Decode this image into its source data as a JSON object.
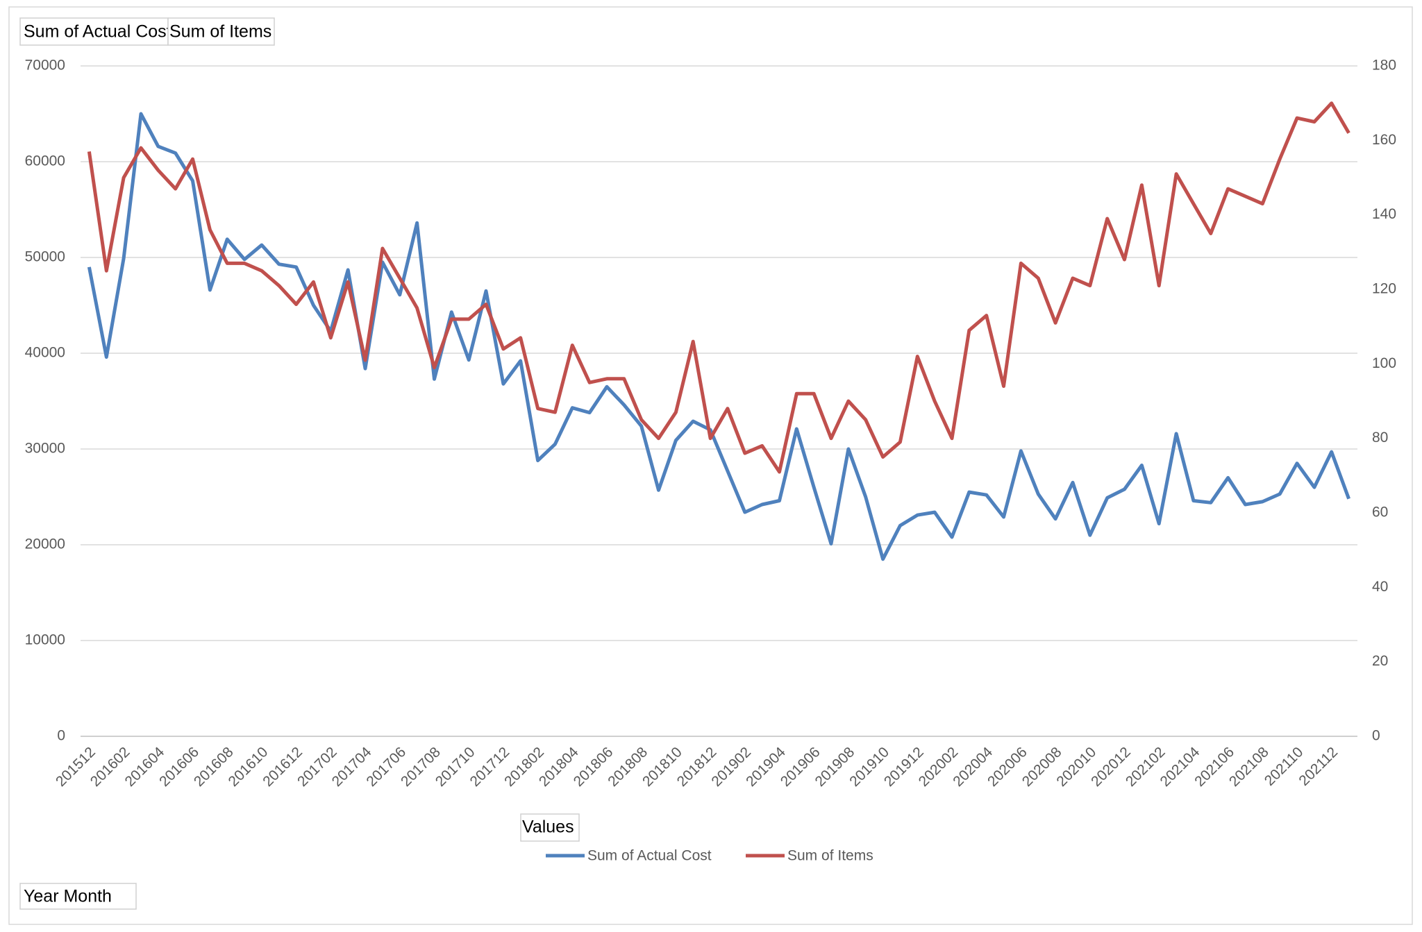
{
  "chart_data": {
    "type": "line",
    "categories": [
      "201512",
      null,
      "201602",
      null,
      "201604",
      null,
      "201606",
      null,
      "201608",
      null,
      "201610",
      null,
      "201612",
      null,
      "201702",
      null,
      "201704",
      null,
      "201706",
      null,
      "201708",
      null,
      "201710",
      null,
      "201712",
      null,
      "201802",
      null,
      "201804",
      null,
      "201806",
      null,
      "201808",
      null,
      "201810",
      null,
      "201812",
      null,
      "201902",
      null,
      "201904",
      null,
      "201906",
      null,
      "201908",
      null,
      "201910",
      null,
      "201912",
      null,
      "202002",
      null,
      "202004",
      null,
      "202006",
      null,
      "202008",
      null,
      "202010",
      null,
      "202012",
      null,
      "202102",
      null,
      "202104",
      null,
      "202106",
      null,
      "202108",
      null,
      "202110",
      null,
      "202112",
      null
    ],
    "series": [
      {
        "name": "Sum of Actual Cost",
        "color": "#4f81bd",
        "values": [
          49000,
          39600,
          49900,
          65000,
          61600,
          60900,
          58000,
          46600,
          51900,
          49800,
          51300,
          49300,
          49000,
          45000,
          42300,
          48700,
          38400,
          49500,
          46100,
          53600,
          37300,
          44300,
          39300,
          46500,
          36800,
          39200,
          28800,
          30500,
          34300,
          33800,
          36500,
          34600,
          32400,
          25700,
          30900,
          32900,
          32000,
          27700,
          23400,
          24200,
          24600,
          32100,
          26000,
          20100,
          30000,
          25000,
          18500,
          22000,
          23100,
          23400,
          20800,
          25500,
          25200,
          22900,
          29800,
          25300,
          22700,
          26500,
          21000,
          24900,
          25800,
          28300,
          22200,
          31600,
          24600,
          24400,
          27000,
          24200,
          24500,
          25300,
          28500,
          26000,
          29700,
          24800
        ]
      },
      {
        "name": "Sum of Items",
        "color": "#c0504d",
        "axis": "y2",
        "values": [
          157,
          125,
          150,
          158,
          152,
          147,
          155,
          136,
          127,
          127,
          125,
          121,
          116,
          122,
          107,
          122,
          101,
          131,
          123,
          115,
          99,
          112,
          112,
          116,
          104,
          107,
          88,
          87,
          105,
          95,
          96,
          96,
          85,
          80,
          87,
          106,
          80,
          88,
          76,
          78,
          71,
          92,
          92,
          80,
          90,
          85,
          75,
          79,
          102,
          90,
          80,
          109,
          113,
          94,
          127,
          123,
          111,
          123,
          121,
          139,
          128,
          148,
          121,
          151,
          143,
          135,
          147,
          145,
          143,
          155,
          166,
          165,
          170,
          162
        ]
      }
    ],
    "ylim": [
      0,
      70000
    ],
    "yticks": [
      0,
      10000,
      20000,
      30000,
      40000,
      50000,
      60000,
      70000
    ],
    "y2lim": [
      0,
      180
    ],
    "y2ticks": [
      0,
      20,
      40,
      60,
      80,
      100,
      120,
      140,
      160,
      180
    ],
    "grid": true,
    "legend": "bottom",
    "legend_field": "Values",
    "axis_field": "Year Month"
  }
}
